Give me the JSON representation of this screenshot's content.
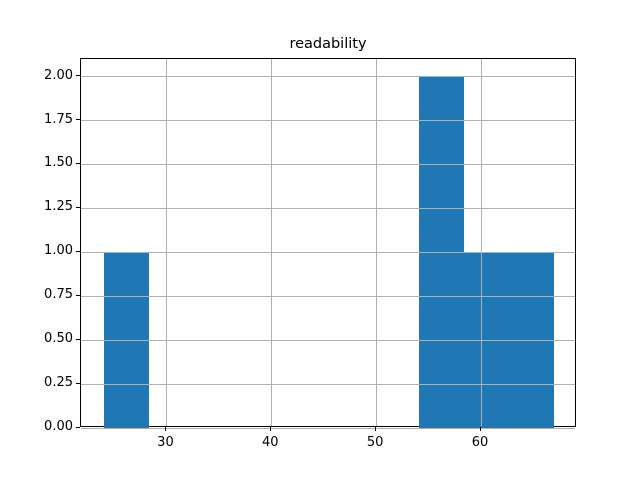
{
  "figure": {
    "kind": "matplotlib-histogram-figure"
  },
  "chart_data": {
    "type": "bar",
    "subtype": "histogram",
    "title": "readability",
    "xlabel": "",
    "ylabel": "",
    "bin_edges": [
      24.0,
      28.3,
      32.6,
      36.9,
      41.2,
      45.5,
      49.8,
      54.1,
      58.4,
      62.7,
      67.0
    ],
    "counts": [
      1,
      0,
      0,
      0,
      0,
      0,
      0,
      2,
      1,
      1
    ],
    "xticks": [
      30,
      40,
      50,
      60
    ],
    "xtick_labels": [
      "30",
      "40",
      "50",
      "60"
    ],
    "yticks": [
      0,
      0.25,
      0.5,
      0.75,
      1,
      1.25,
      1.5,
      1.75,
      2
    ],
    "ytick_labels": [
      "0.00",
      "0.25",
      "0.50",
      "0.75",
      "1.00",
      "1.25",
      "1.50",
      "1.75",
      "2.00"
    ],
    "xlim": [
      21.85,
      69.15
    ],
    "ylim": [
      0,
      2.1
    ],
    "grid": true,
    "grid_above_bars": true,
    "legend": false,
    "colors": {
      "bar": "#1f77b4",
      "grid": "#b0b0b0",
      "spine": "#000000",
      "background": "#ffffff",
      "text": "#000000"
    }
  }
}
